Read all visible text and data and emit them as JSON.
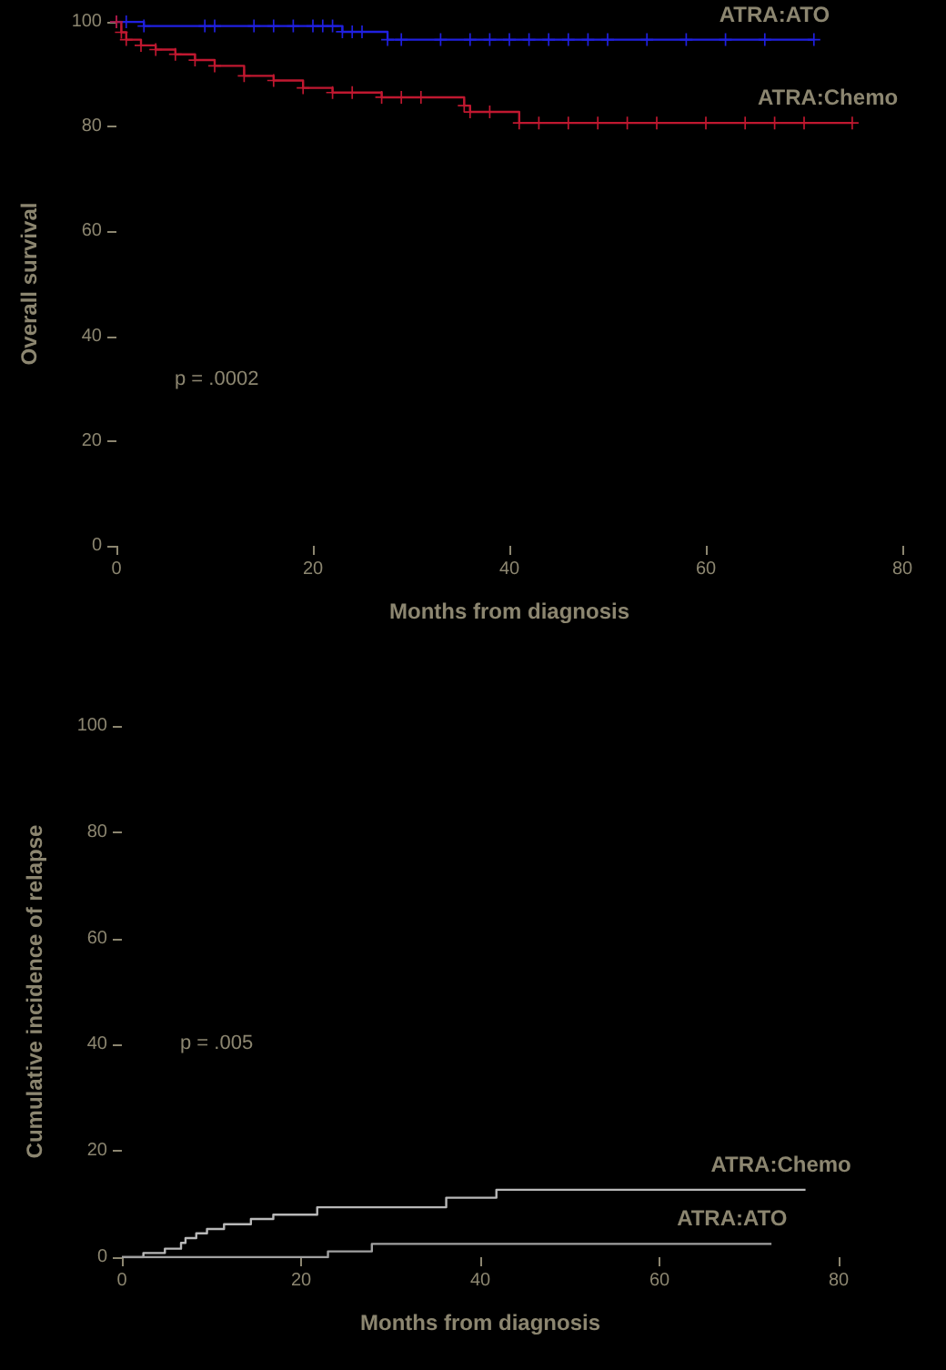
{
  "chart_data": [
    {
      "type": "step",
      "xlabel": "Months from diagnosis",
      "ylabel": "Overall survival",
      "annotations": [
        "p = .0002"
      ],
      "marker": "cross",
      "line_style": "solid",
      "legend": false,
      "grid": false,
      "xlim": [
        0,
        80
      ],
      "xticks": [
        0,
        20,
        40,
        60,
        80
      ],
      "ylim": [
        0,
        100
      ],
      "yticks": [
        0,
        20,
        40,
        60,
        80,
        100
      ],
      "series": [
        {
          "name": "ATRA:ATO",
          "color": "#2020e0",
          "x": [
            0,
            1,
            2.8,
            9,
            10,
            14,
            16,
            18,
            20,
            21,
            22,
            23,
            24,
            25,
            27.6,
            29,
            33,
            36,
            38,
            40,
            42,
            44,
            46,
            48,
            50,
            54,
            58,
            62,
            66,
            71
          ],
          "values": [
            100,
            100,
            99.2,
            99.2,
            99.2,
            99.2,
            99.2,
            99.2,
            99.2,
            99.2,
            99.2,
            98.1,
            98.1,
            98.1,
            96.6,
            96.6,
            96.6,
            96.6,
            96.6,
            96.6,
            96.6,
            96.6,
            96.6,
            96.6,
            96.6,
            96.6,
            96.6,
            96.6,
            96.6,
            96.6
          ]
        },
        {
          "name": "ATRA:Chemo",
          "color": "#c01830",
          "x": [
            0,
            0.5,
            1,
            2.5,
            4,
            6,
            8,
            10,
            13,
            16,
            19,
            22,
            24,
            27,
            29,
            31,
            35.4,
            36,
            38,
            41,
            43,
            46,
            49,
            52,
            55,
            60,
            64,
            67,
            70,
            74.9
          ],
          "values": [
            100,
            98,
            96.6,
            95.5,
            94.7,
            93.8,
            92.7,
            91.6,
            89.7,
            88.8,
            87.4,
            86.5,
            86.5,
            85.6,
            85.6,
            85.6,
            84,
            82.8,
            82.8,
            80.7,
            80.7,
            80.7,
            80.7,
            80.7,
            80.7,
            80.7,
            80.7,
            80.7,
            80.7,
            80.7
          ]
        }
      ]
    },
    {
      "type": "step",
      "xlabel": "Months from diagnosis",
      "ylabel": "Cumulative incidence of relapse",
      "annotations": [
        "p = .005"
      ],
      "line_style": "solid",
      "legend": false,
      "grid": false,
      "xlim": [
        0,
        80
      ],
      "xticks": [
        0,
        20,
        40,
        60,
        80
      ],
      "ylim": [
        0,
        100
      ],
      "yticks": [
        0,
        20,
        40,
        60,
        80,
        100
      ],
      "series": [
        {
          "name": "ATRA:Chemo",
          "color": "#b8b8b8",
          "x": [
            0,
            2.4,
            4.8,
            6.6,
            7.1,
            8.3,
            9.5,
            11.4,
            14.4,
            16.9,
            21.8,
            36.2,
            41.8,
            76.3
          ],
          "values": [
            0,
            0.8,
            1.6,
            2.7,
            3.6,
            4.5,
            5.3,
            6.2,
            7.2,
            8,
            9.4,
            11.2,
            12.7,
            12.7
          ]
        },
        {
          "name": "ATRA:ATO",
          "color": "#a0a0a0",
          "x": [
            0,
            23,
            27.9,
            72.5
          ],
          "values": [
            0,
            1.1,
            2.5,
            2.5
          ]
        }
      ]
    }
  ]
}
